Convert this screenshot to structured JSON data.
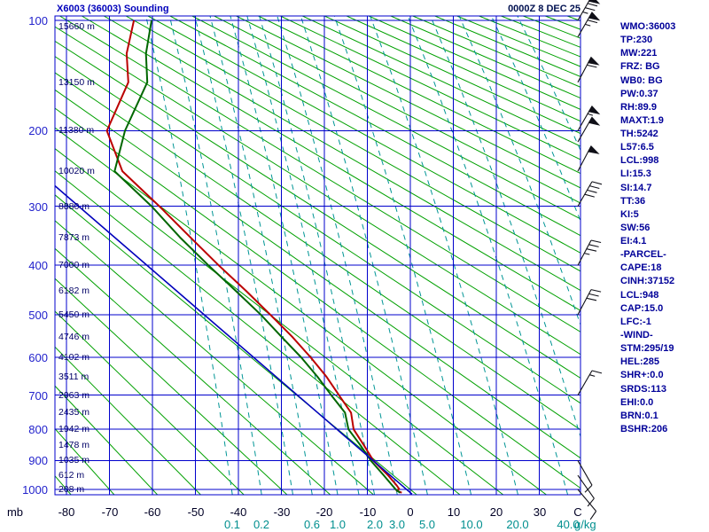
{
  "header": {
    "title": "X6003 (36003) Sounding",
    "datetime": "0000Z  8 DEC 25"
  },
  "stats_panel": {
    "lines": [
      "WMO:36003",
      "TP:230",
      "MW:221",
      "FRZ: BG",
      "WB0: BG",
      "PW:0.37",
      "RH:89.9",
      "MAXT:1.9",
      "TH:5242",
      "L57:6.5",
      "LCL:998",
      "LI:15.3",
      "SI:14.7",
      "TT:36",
      "KI:5",
      "SW:56",
      "EI:4.1",
      "-PARCEL-",
      "CAPE:18",
      "CINH:37152",
      "LCL:948",
      "CAP:15.0",
      "LFC:-1",
      "-WIND-",
      "STM:295/19",
      "HEL:285",
      "SHR+:0.0",
      "SRDS:113",
      "EHI:0.0",
      "BRN:0.1",
      "BSHR:206"
    ]
  },
  "chart_data": {
    "type": "line",
    "diagram": "stuve-sounding",
    "title": "X6003 (36003) Sounding",
    "grid": true,
    "pressure_axis": {
      "unit": "mb",
      "ticks": [
        100,
        200,
        300,
        400,
        500,
        600,
        700,
        800,
        900,
        1000
      ]
    },
    "temp_axis": {
      "unit": "C",
      "ticks": [
        -80,
        -70,
        -60,
        -50,
        -40,
        -30,
        -20,
        -10,
        0,
        10,
        20,
        30
      ],
      "min": -82.7,
      "max": 39.6
    },
    "height_labels": [
      {
        "p": 100,
        "text": "15660 m"
      },
      {
        "p": 150,
        "text": "13150 m"
      },
      {
        "p": 200,
        "text": "11380 m"
      },
      {
        "p": 250,
        "text": "10020 m"
      },
      {
        "p": 300,
        "text": "8880 m"
      },
      {
        "p": 350,
        "text": "7873 m"
      },
      {
        "p": 400,
        "text": "7000 m"
      },
      {
        "p": 450,
        "text": "6182 m"
      },
      {
        "p": 500,
        "text": "5450 m"
      },
      {
        "p": 550,
        "text": "4746 m"
      },
      {
        "p": 600,
        "text": "4102 m"
      },
      {
        "p": 650,
        "text": "3511 m"
      },
      {
        "p": 700,
        "text": "2963 m"
      },
      {
        "p": 750,
        "text": "2435 m"
      },
      {
        "p": 800,
        "text": "1942 m"
      },
      {
        "p": 850,
        "text": "1478 m"
      },
      {
        "p": 900,
        "text": "1035 m"
      },
      {
        "p": 950,
        "text": "612 m"
      },
      {
        "p": 1000,
        "text": "208 m"
      }
    ],
    "dry_adiabats": {
      "theta_c_min": -80,
      "theta_c_max": 330,
      "step": 10
    },
    "mixing_ratio": {
      "unit": "g/kg",
      "labeled_values": [
        0.1,
        0.2,
        0.6,
        1.0,
        2.0,
        3.0,
        5.0,
        10.0,
        20.0,
        40.0
      ],
      "drawn_values": [
        0.1,
        0.2,
        0.4,
        0.6,
        1.0,
        1.5,
        2.0,
        3.0,
        5.0,
        10.0,
        20.0,
        40.0,
        60.0,
        100.0,
        180.0,
        300.0
      ]
    },
    "series": [
      {
        "name": "temperature",
        "color": "#bb0000",
        "width": 2,
        "points": [
          [
            1012,
            -2.0
          ],
          [
            1004,
            -3.2
          ],
          [
            998,
            -2.6
          ],
          [
            985,
            -3.2
          ],
          [
            950,
            -5.2
          ],
          [
            900,
            -8.6
          ],
          [
            850,
            -10.8
          ],
          [
            800,
            -13.2
          ],
          [
            750,
            -13.8
          ],
          [
            700,
            -16.6
          ],
          [
            650,
            -19.5
          ],
          [
            600,
            -23.2
          ],
          [
            550,
            -27.5
          ],
          [
            500,
            -32.6
          ],
          [
            450,
            -38.2
          ],
          [
            400,
            -44.6
          ],
          [
            350,
            -51.2
          ],
          [
            300,
            -58.4
          ],
          [
            250,
            -67.0
          ],
          [
            200,
            -70.6
          ],
          [
            150,
            -65.6
          ],
          [
            125,
            -66.0
          ],
          [
            100,
            -64.3
          ]
        ]
      },
      {
        "name": "dewpoint",
        "color": "#006600",
        "width": 2,
        "points": [
          [
            1012,
            -2.4
          ],
          [
            1000,
            -3.4
          ],
          [
            950,
            -6.2
          ],
          [
            900,
            -9.2
          ],
          [
            850,
            -11.6
          ],
          [
            800,
            -14.4
          ],
          [
            750,
            -15.2
          ],
          [
            700,
            -18.4
          ],
          [
            650,
            -21.6
          ],
          [
            600,
            -25.4
          ],
          [
            550,
            -30.0
          ],
          [
            500,
            -34.8
          ],
          [
            450,
            -40.6
          ],
          [
            400,
            -47.0
          ],
          [
            350,
            -53.6
          ],
          [
            300,
            -60.2
          ],
          [
            250,
            -68.8
          ],
          [
            200,
            -66.4
          ],
          [
            150,
            -61.2
          ],
          [
            125,
            -61.5
          ],
          [
            100,
            -60.2
          ]
        ]
      },
      {
        "name": "parcel",
        "color": "#0000bb",
        "width": 1.6,
        "points": [
          [
            1017,
            0.4
          ],
          [
            270,
            -82.7
          ]
        ]
      }
    ],
    "winds": {
      "barbs": [
        {
          "p": 100,
          "spd": 75,
          "az": 30
        },
        {
          "p": 112,
          "spd": 65,
          "az": 30
        },
        {
          "p": 150,
          "spd": 60,
          "az": 28
        },
        {
          "p": 200,
          "spd": 55,
          "az": 30
        },
        {
          "p": 213,
          "spd": 50,
          "az": 30
        },
        {
          "p": 250,
          "spd": 50,
          "az": 28
        },
        {
          "p": 300,
          "spd": 40,
          "az": 30
        },
        {
          "p": 400,
          "spd": 35,
          "az": 28
        },
        {
          "p": 500,
          "spd": 30,
          "az": 28
        },
        {
          "p": 700,
          "spd": 15,
          "az": 30
        },
        {
          "p": 900,
          "spd": 10,
          "az": 150
        },
        {
          "p": 950,
          "spd": 10,
          "az": 145
        },
        {
          "p": 1000,
          "spd": 10,
          "az": 140
        }
      ]
    },
    "colors": {
      "grid": "#0000cc",
      "dry_adiabat": "#00a000",
      "mixing": "#009595",
      "barb": "#101018"
    }
  }
}
